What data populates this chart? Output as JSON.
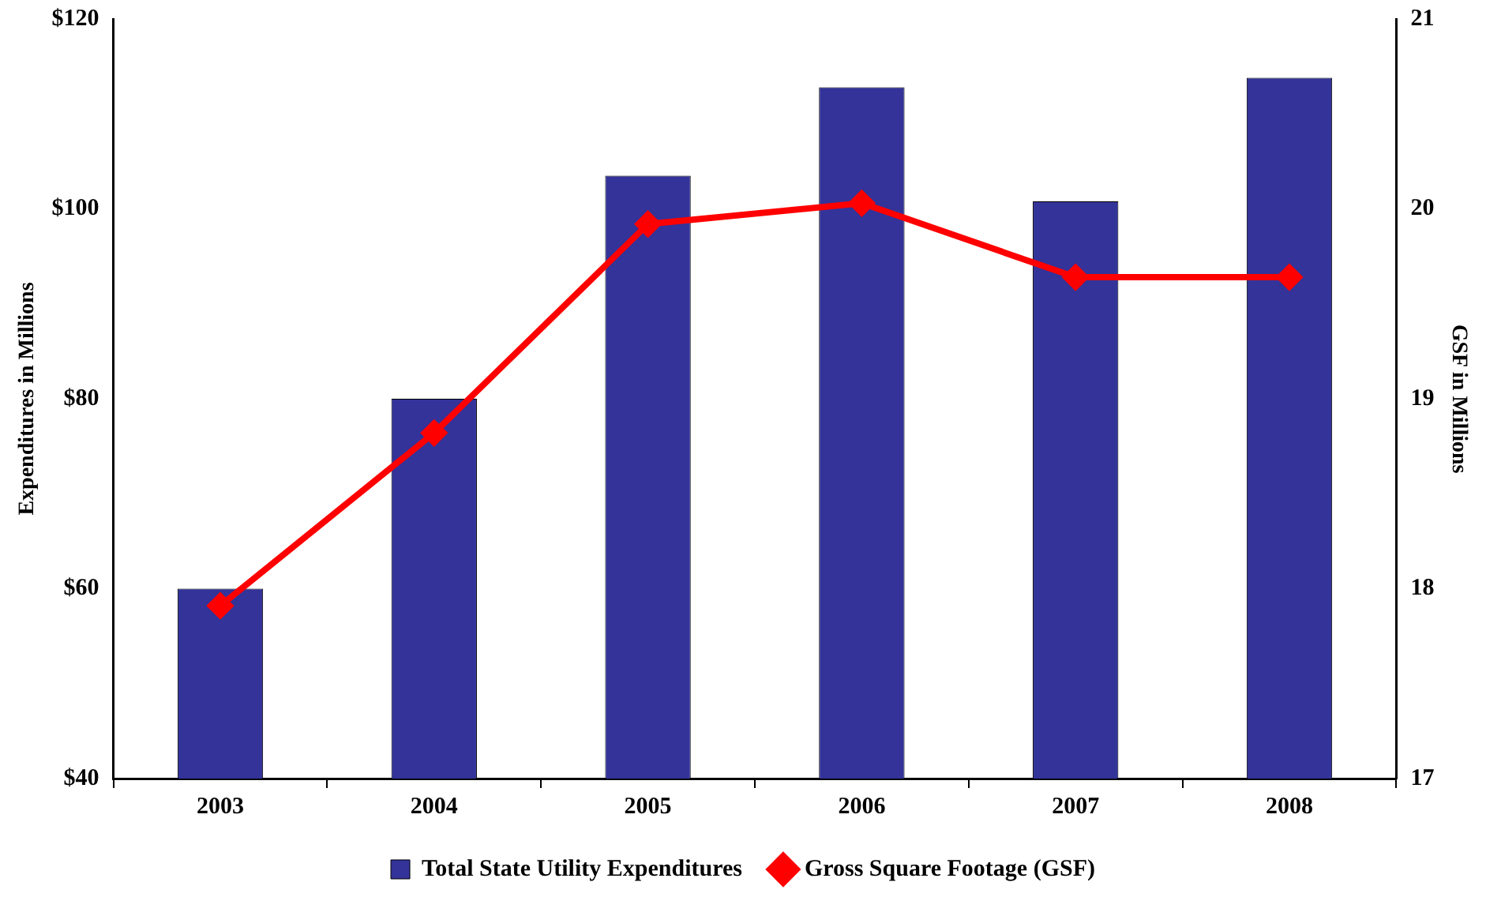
{
  "chart_data": {
    "type": "bar",
    "categories": [
      "2003",
      "2004",
      "2005",
      "2006",
      "2007",
      "2008"
    ],
    "ylabel": "Expenditures in Millions",
    "y2label": "GSF in Millions",
    "series": [
      {
        "name": "Total State Utility Expenditures",
        "color": "#333399",
        "values": [
          60,
          80,
          103.5,
          112.8,
          100.8,
          113.8
        ]
      },
      {
        "name": "Gross Square Footage (GSF)",
        "type": "line",
        "axis": "y2",
        "color": "#ff0000",
        "marker": "diamond",
        "values": [
          17.91,
          18.82,
          19.92,
          20.03,
          19.64,
          19.64
        ]
      }
    ],
    "ylim": [
      40,
      120
    ],
    "yticks": [
      {
        "value": 40,
        "label": "$40"
      },
      {
        "value": 60,
        "label": "$60"
      },
      {
        "value": 80,
        "label": "$80"
      },
      {
        "value": 100,
        "label": "$100"
      },
      {
        "value": 120,
        "label": "$120"
      }
    ],
    "y2lim": [
      17,
      21
    ],
    "y2ticks": [
      17,
      18,
      19,
      20,
      21
    ],
    "grid": false,
    "legend": "bottom"
  }
}
